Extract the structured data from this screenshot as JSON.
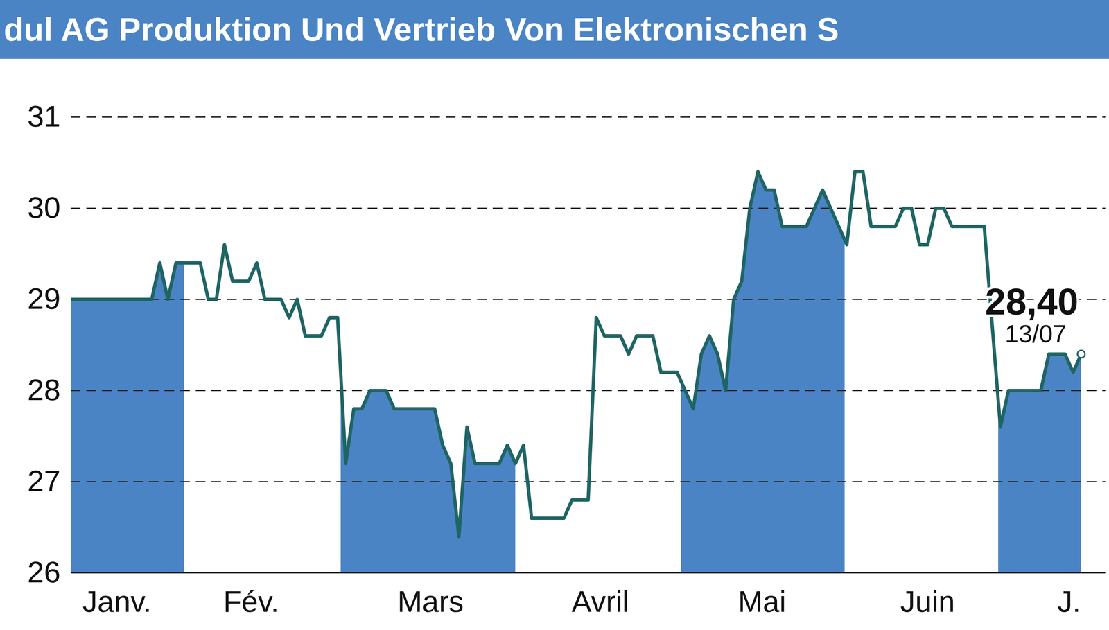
{
  "chart_data": {
    "type": "line",
    "title": "dul AG Produktion Und Vertrieb Von Elektronischen S",
    "color": "#1f6563",
    "grid": true,
    "annotations": [
      "28,40",
      "13/07"
    ],
    "x": [
      0,
      10,
      11,
      12,
      13,
      16,
      17,
      18,
      19,
      20,
      22,
      23,
      24,
      26,
      27,
      28,
      29,
      31,
      32,
      33,
      34,
      35,
      36,
      37,
      39,
      40,
      45,
      46,
      47,
      48,
      49,
      50,
      53,
      54,
      55,
      56,
      57,
      61,
      62,
      64,
      65,
      66,
      68,
      69,
      70,
      72,
      73,
      75,
      77,
      78,
      79,
      80,
      81,
      82,
      83,
      84,
      85,
      86,
      87,
      88,
      91,
      93,
      96,
      97,
      98,
      99,
      102,
      103,
      104,
      105,
      106,
      107,
      108,
      109,
      113,
      115,
      116,
      120,
      121,
      123,
      124,
      125
    ],
    "values": [
      29,
      29,
      29.4,
      29,
      29.4,
      29.4,
      29,
      29,
      29.6,
      29.2,
      29.2,
      29.4,
      29,
      29,
      28.8,
      29,
      28.6,
      28.6,
      28.8,
      28.8,
      27.2,
      27.8,
      27.8,
      28,
      28,
      27.8,
      27.8,
      27.4,
      27.2,
      26.4,
      27.6,
      27.2,
      27.2,
      27.4,
      27.2,
      27.4,
      26.6,
      26.6,
      26.8,
      26.8,
      28.8,
      28.6,
      28.6,
      28.4,
      28.6,
      28.6,
      28.2,
      28.2,
      27.8,
      28.4,
      28.6,
      28.4,
      28,
      29,
      29.2,
      30,
      30.4,
      30.2,
      30.2,
      29.8,
      29.8,
      30.2,
      29.6,
      30.4,
      30.4,
      29.8,
      29.8,
      30,
      30,
      29.6,
      29.6,
      30,
      30,
      29.8,
      29.8,
      27.6,
      28,
      28,
      28.4,
      28.4,
      28.2,
      28.4
    ],
    "xlim": [
      0,
      128
    ],
    "xticks": [
      {
        "value": 5.7,
        "label": "Janv."
      },
      {
        "value": 22.3,
        "label": "Fév."
      },
      {
        "value": 44.5,
        "label": "Mars"
      },
      {
        "value": 65.5,
        "label": "Avril"
      },
      {
        "value": 85.5,
        "label": "Mai"
      },
      {
        "value": 106,
        "label": "Juin"
      },
      {
        "value": 123.5,
        "label": "J."
      }
    ],
    "ylim": [
      26,
      31
    ],
    "yticks": [
      26,
      27,
      28,
      29,
      30,
      31
    ]
  }
}
